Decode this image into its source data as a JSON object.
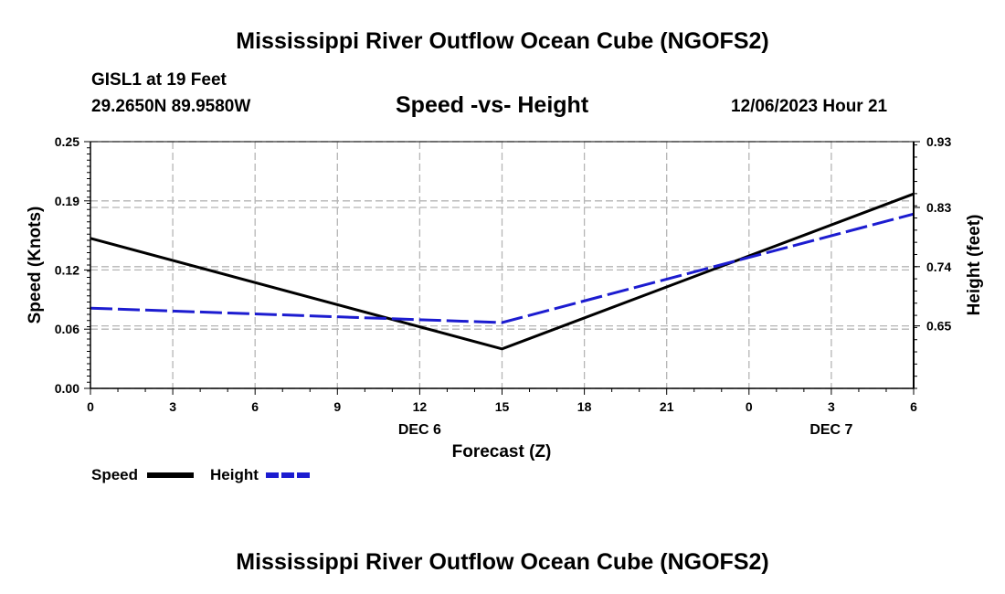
{
  "page": {
    "title": "Mississippi River Outflow Ocean Cube (NGOFS2)",
    "bottom_title": "Mississippi River Outflow Ocean Cube (NGOFS2)",
    "station": "GISL1 at 19 Feet",
    "coords": "29.2650N  89.9580W",
    "datetime": "12/06/2023 Hour 21"
  },
  "colors": {
    "speed": "#000000",
    "height": "#1c1cd0",
    "grid": "#b5b5b5"
  },
  "chart_data": {
    "type": "line",
    "title": "Speed -vs- Height",
    "xlabel": "Forecast (Z)",
    "ylabel": "Speed (Knots)",
    "y2label": "Height (feet)",
    "x_ticks": [
      {
        "hour": 0,
        "label": "0"
      },
      {
        "hour": 3,
        "label": "3"
      },
      {
        "hour": 6,
        "label": "6"
      },
      {
        "hour": 9,
        "label": "9"
      },
      {
        "hour": 12,
        "label": "12"
      },
      {
        "hour": 15,
        "label": "15"
      },
      {
        "hour": 18,
        "label": "18"
      },
      {
        "hour": 21,
        "label": "21"
      },
      {
        "hour": 24,
        "label": "0"
      },
      {
        "hour": 27,
        "label": "3"
      },
      {
        "hour": 30,
        "label": "6"
      }
    ],
    "date_labels": [
      {
        "hour": 12,
        "label": "DEC 6"
      },
      {
        "hour": 27,
        "label": "DEC 7"
      }
    ],
    "xlim": [
      0,
      30
    ],
    "ylim": [
      0,
      0.25
    ],
    "y_ticks": [
      "0.00",
      "0.06",
      "0.12",
      "0.19",
      "0.25"
    ],
    "y2lim": [
      0.555,
      0.93
    ],
    "y2_ticks": [
      "0.65",
      "0.74",
      "0.83",
      "0.93"
    ],
    "series": [
      {
        "name": "Speed",
        "axis": "left",
        "style": "solid",
        "x": [
          0,
          15,
          30
        ],
        "values": [
          0.152,
          0.04,
          0.197
        ]
      },
      {
        "name": "Height",
        "axis": "right",
        "style": "dashed",
        "x": [
          0,
          15,
          30
        ],
        "values": [
          0.677,
          0.655,
          0.82
        ]
      }
    ],
    "legend": [
      "Speed",
      "Height"
    ]
  }
}
